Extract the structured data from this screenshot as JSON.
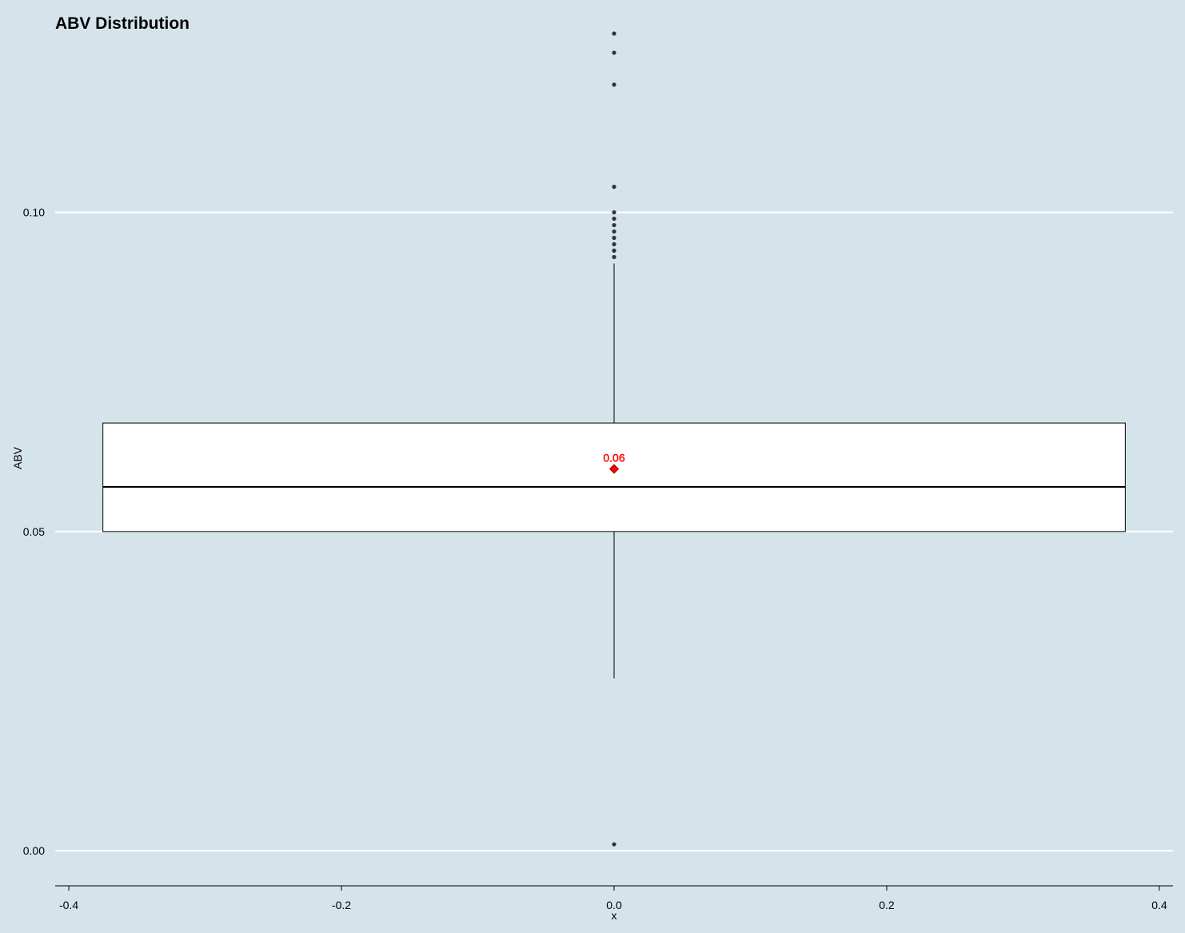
{
  "chart_data": {
    "type": "boxplot",
    "title": "ABV Distribution",
    "xlabel": "x",
    "ylabel": "ABV",
    "xlim": [
      -0.41,
      0.41
    ],
    "ylim": [
      -0.0055,
      0.127
    ],
    "x_ticks": [
      -0.4,
      -0.2,
      0.0,
      0.2,
      0.4
    ],
    "x_tick_labels": [
      "-0.4",
      "-0.2",
      "0.0",
      "0.2",
      "0.4"
    ],
    "y_ticks": [
      0.0,
      0.05,
      0.1
    ],
    "y_tick_labels": [
      "0.00",
      "0.05",
      "0.10"
    ],
    "grid": "horizontal major",
    "box": {
      "x": 0.0,
      "box_left": -0.375,
      "box_right": 0.375,
      "whisker_low": 0.027,
      "q1": 0.05,
      "median": 0.057,
      "q3": 0.067,
      "whisker_high": 0.092
    },
    "outliers": [
      0.001,
      0.093,
      0.094,
      0.095,
      0.096,
      0.097,
      0.098,
      0.099,
      0.1,
      0.104,
      0.12,
      0.125,
      0.128
    ],
    "mean": {
      "value": 0.0598,
      "label": "0.06",
      "color": "#ff0000"
    },
    "colors": {
      "background": "#d5e4eb",
      "grid": "#ffffff",
      "box_fill": "#ffffff",
      "box_stroke": "#000000",
      "outlier": "#333333",
      "mean": "#ff0000"
    }
  }
}
